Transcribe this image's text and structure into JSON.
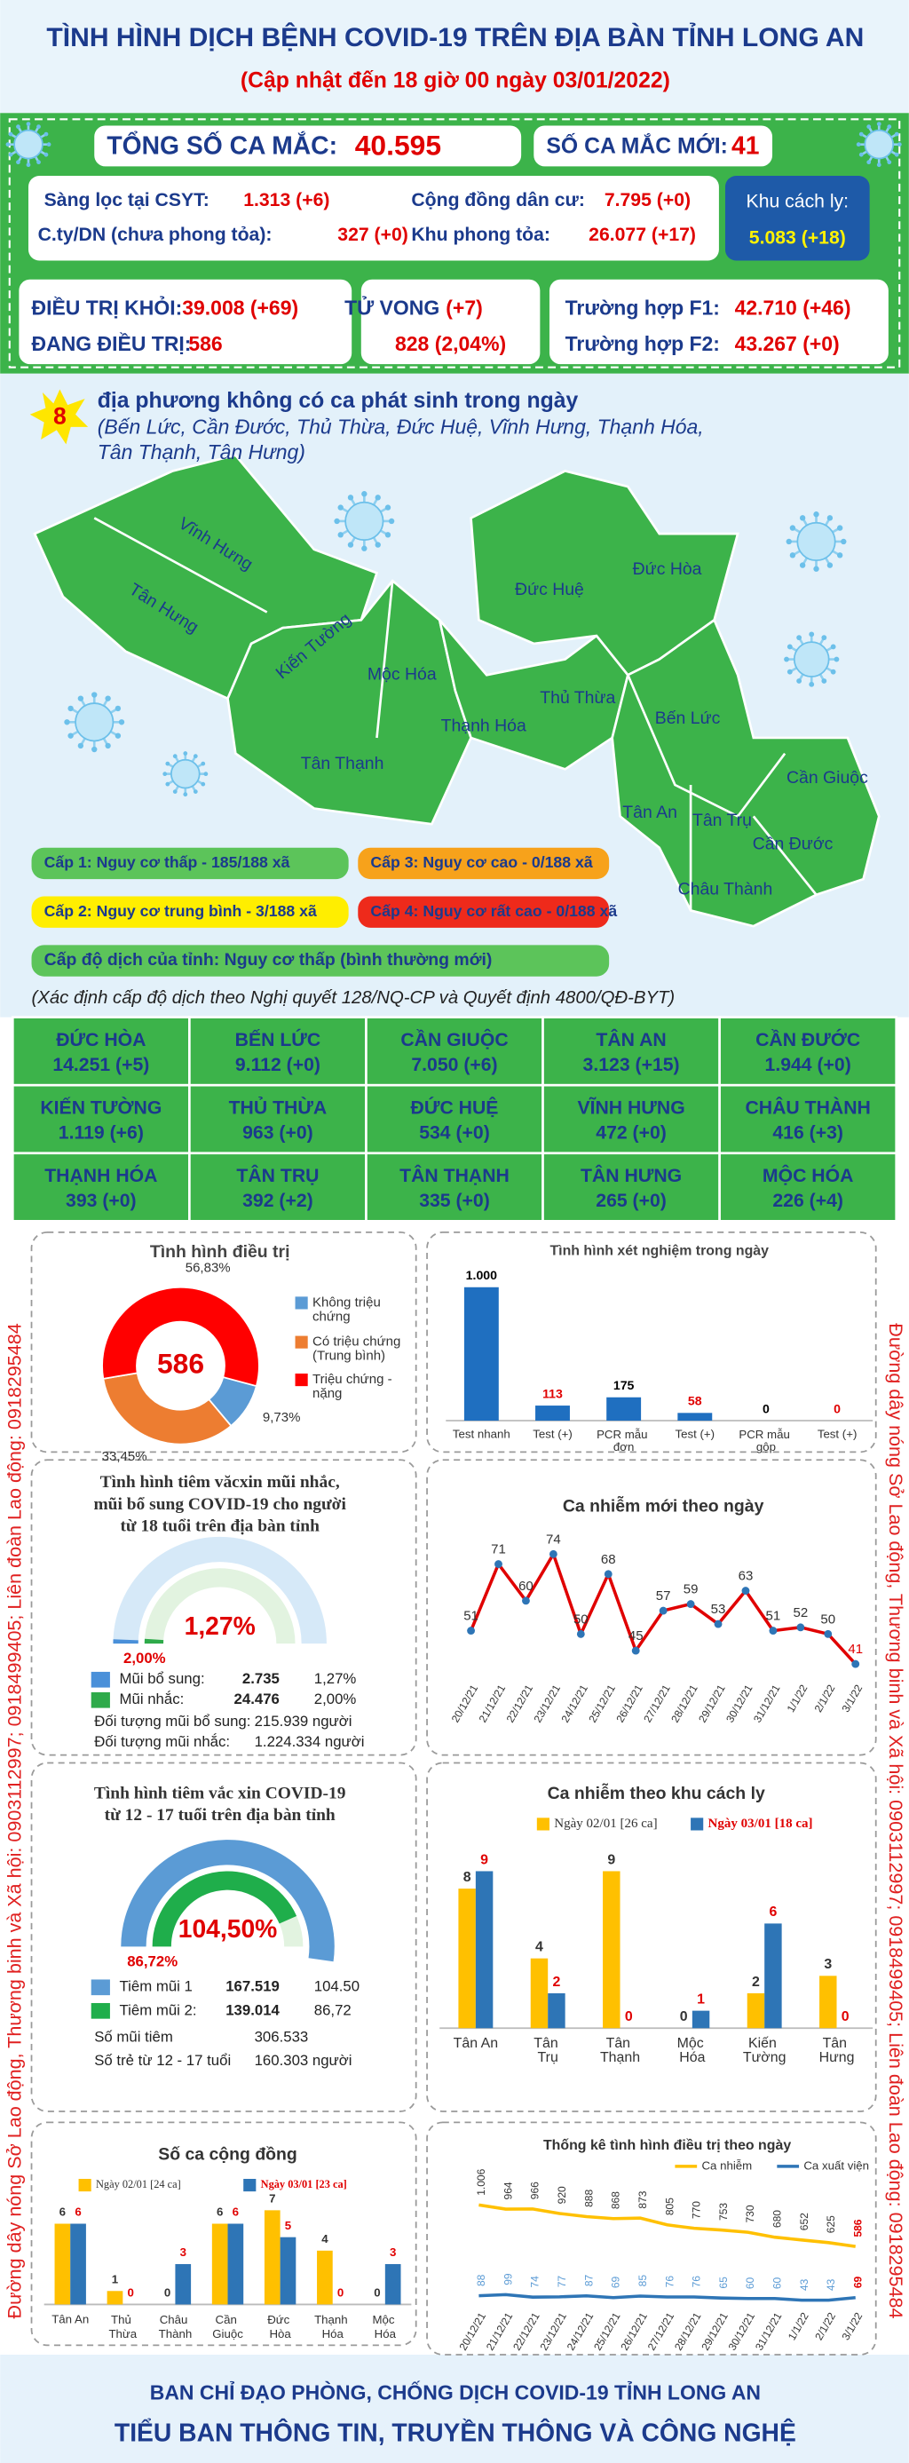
{
  "header": {
    "title": "TÌNH HÌNH DỊCH BỆNH COVID-19 TRÊN ĐỊA BÀN TỈNH LONG AN",
    "subtitle": "(Cập nhật đến 18 giờ 00 ngày 03/01/2022)"
  },
  "summary": {
    "total_label": "TỔNG SỐ CA MẮC:",
    "total": "40.595",
    "new_label": "SỐ CA MẮC MỚI:",
    "new": "41",
    "sources": [
      {
        "label": "Sàng lọc tại CSYT:",
        "value": "1.313 (+6)"
      },
      {
        "label": "C.ty/DN (chưa phong tỏa):",
        "value": "327 (+0)"
      },
      {
        "label": "Cộng đồng dân cư:",
        "value": "7.795 (+0)"
      },
      {
        "label": "Khu phong tỏa:",
        "value": "26.077 (+17)"
      },
      {
        "label": "Khu cách ly:",
        "value": "5.083 (+18)"
      }
    ],
    "recovered_label": "ĐIỀU TRỊ KHỎI:",
    "recovered": "39.008 (+69)",
    "treating_label": "ĐANG ĐIỀU TRỊ:",
    "treating": "586",
    "deaths_label": "TỬ VONG",
    "deaths_new": "(+7)",
    "deaths": "828 (2,04%)",
    "f1_label": "Trường hợp F1:",
    "f1": "42.710 (+46)",
    "f2_label": "Trường hợp F2:",
    "f2": "43.267 (+0)"
  },
  "map": {
    "count": "8",
    "headline": "địa phương không có ca phát sinh trong ngày",
    "list": [
      "(Bến Lức, Cần Đước, Thủ Thừa, Đức Huệ, Vĩnh Hưng, Thạnh Hóa,",
      "Tân Thạnh, Tân Hưng)"
    ],
    "districts": [
      "Vĩnh Hưng",
      "Tân Hưng",
      "Kiến Tường",
      "Mộc Hóa",
      "Tân Thạnh",
      "Thạnh Hóa",
      "Đức Huệ",
      "Đức Hòa",
      "Thủ Thừa",
      "Bến Lức",
      "Tân An",
      "Tân Trụ",
      "Châu Thành",
      "Cần Giuộc",
      "Cần Đước"
    ],
    "levels": [
      "Cấp 1: Nguy cơ thấp - 185/188 xã",
      "Cấp 2: Nguy cơ trung bình - 3/188 xã",
      "Cấp 3: Nguy cơ cao - 0/188 xã",
      "Cấp 4: Nguy cơ rất cao - 0/188 xã"
    ],
    "level_colors": [
      "#5cc45a",
      "#ffee00",
      "#f7a21b",
      "#ee2a1b"
    ],
    "province_level": "Cấp độ dịch của tỉnh: Nguy cơ thấp (bình thường mới)",
    "note": "(Xác định cấp độ dịch theo Nghị quyết 128/NQ-CP và Quyết định 4800/QĐ-BYT)"
  },
  "districts_table": [
    [
      {
        "name": "ĐỨC HÒA",
        "value": "14.251 (+5)"
      },
      {
        "name": "BẾN LỨC",
        "value": "9.112 (+0)"
      },
      {
        "name": "CẦN GIUỘC",
        "value": "7.050 (+6)"
      },
      {
        "name": "TÂN AN",
        "value": "3.123 (+15)"
      },
      {
        "name": "CẦN ĐƯỚC",
        "value": "1.944 (+0)"
      }
    ],
    [
      {
        "name": "KIẾN TƯỜNG",
        "value": "1.119 (+6)"
      },
      {
        "name": "THỦ THỪA",
        "value": "963 (+0)"
      },
      {
        "name": "ĐỨC HUỆ",
        "value": "534 (+0)"
      },
      {
        "name": "VĨNH HƯNG",
        "value": "472 (+0)"
      },
      {
        "name": "CHÂU THÀNH",
        "value": "416 (+3)"
      }
    ],
    [
      {
        "name": "THẠNH HÓA",
        "value": "393 (+0)"
      },
      {
        "name": "TÂN TRỤ",
        "value": "392 (+2)"
      },
      {
        "name": "TÂN THẠNH",
        "value": "335 (+0)"
      },
      {
        "name": "TÂN HƯNG",
        "value": "265 (+0)"
      },
      {
        "name": "MỘC HÓA",
        "value": "226 (+4)"
      }
    ]
  ],
  "hotline": "Đường dây nóng Sở Lao động, Thương binh và Xã hội: 0903112997; 0918499405; Liên đoàn Lao động: 0918295484",
  "chart_data": [
    {
      "type": "pie",
      "title": "Tình hình điều trị",
      "center_label": "586",
      "categories": [
        "Không triệu chứng",
        "Có triệu chứng (Trung bình)",
        "Triệu chứng - nặng"
      ],
      "values": [
        9.73,
        33.45,
        56.83
      ],
      "value_labels": [
        "9,73%",
        "33,45%",
        "56,83%"
      ],
      "colors": [
        "#5b9bd5",
        "#ed7d31",
        "#ff0000"
      ]
    },
    {
      "type": "bar",
      "title": "Tình hình xét nghiệm trong ngày",
      "categories": [
        "Test nhanh",
        "Test (+)",
        "PCR mẫu đơn",
        "Test (+)",
        "PCR mẫu gộp",
        "Test (+)"
      ],
      "values": [
        1000,
        113,
        175,
        58,
        0,
        0
      ],
      "value_labels": [
        "1.000",
        "113",
        "175",
        "58",
        "0",
        "0"
      ],
      "color": "#1f6fc0",
      "value_label_colors": [
        "#000000",
        "#e00000",
        "#000000",
        "#e00000",
        "#000000",
        "#e00000"
      ]
    },
    {
      "type": "gauge",
      "title": [
        "Tình hình tiêm văcxin mũi nhắc,",
        "mũi bổ sung COVID-19 cho người",
        "từ 18 tuổi trên địa bàn tỉnh"
      ],
      "values": [
        1.27,
        2.0
      ],
      "value_labels": [
        "1,27%",
        "2,00%"
      ],
      "colors": [
        "#4a90d9",
        "#2eaa4a"
      ],
      "rows": [
        [
          "Mũi bổ sung:",
          "2.735",
          "1,27%"
        ],
        [
          "Mũi nhắc:",
          "24.476",
          "2,00%"
        ],
        [
          "Đối tượng mũi bổ sung:",
          "215.939 người"
        ],
        [
          "Đối tượng mũi nhắc:",
          "1.224.334 người"
        ]
      ]
    },
    {
      "type": "line",
      "title": "Ca nhiễm mới theo ngày",
      "categories": [
        "20/12/21",
        "21/12/21",
        "22/12/21",
        "23/12/21",
        "24/12/21",
        "25/12/21",
        "26/12/21",
        "27/12/21",
        "28/12/21",
        "29/12/21",
        "30/12/21",
        "31/12/21",
        "1/1/22",
        "2/1/22",
        "3/1/22"
      ],
      "series": [
        {
          "color": "#e00000",
          "marker_color": "#2e75b6",
          "values": [
            51,
            71,
            60,
            74,
            50,
            68,
            45,
            57,
            59,
            53,
            63,
            51,
            52,
            50,
            41
          ]
        }
      ],
      "last_label_color": "#e00000"
    },
    {
      "type": "gauge",
      "title": [
        "Tình hình tiêm vắc xin COVID-19",
        "từ 12 - 17 tuổi trên địa bàn tỉnh"
      ],
      "values": [
        104.5,
        86.72
      ],
      "value_labels": [
        "104,50%",
        "86,72%"
      ],
      "colors": [
        "#5b9bd5",
        "#1fae4b"
      ],
      "rows": [
        [
          "Tiêm mũi 1",
          "167.519",
          "104.50"
        ],
        [
          "Tiêm mũi 2:",
          "139.014",
          "86,72"
        ],
        [
          "Số mũi tiêm",
          "306.533"
        ],
        [
          "Số trẻ từ 12 - 17 tuổi",
          "160.303 người"
        ]
      ]
    },
    {
      "type": "grouped_bar",
      "title": "Ca nhiễm theo khu cách ly",
      "categories": [
        "Tân An",
        "Tân Trụ",
        "Tân Thạnh",
        "Mộc Hóa",
        "Kiến Tường",
        "Tân Hưng"
      ],
      "series": [
        {
          "name": "Ngày 02/01 [26 ca]",
          "color": "#ffc000",
          "label_color": "#333333",
          "values": [
            8,
            4,
            9,
            0,
            2,
            3
          ]
        },
        {
          "name": "Ngày 03/01 [18 ca]",
          "color": "#2e75b6",
          "label_color": "#e00000",
          "values": [
            9,
            2,
            0,
            1,
            6,
            0
          ]
        }
      ]
    },
    {
      "type": "grouped_bar",
      "title": "Số ca cộng đồng",
      "categories": [
        "Tân An",
        "Thủ Thừa",
        "Châu Thành",
        "Cần Giuộc",
        "Đức Hòa",
        "Thạnh Hóa",
        "Mộc Hóa"
      ],
      "series": [
        {
          "name": "Ngày 02/01 [24 ca]",
          "color": "#ffc000",
          "label_color": "#333333",
          "values": [
            6,
            1,
            0,
            6,
            7,
            4,
            0
          ]
        },
        {
          "name": "Ngày 03/01 [23 ca]",
          "color": "#2e75b6",
          "label_color": "#e00000",
          "values": [
            6,
            0,
            3,
            6,
            5,
            0,
            3
          ]
        }
      ]
    },
    {
      "type": "line",
      "title": "Thống kê tình hình điều trị theo ngày",
      "categories": [
        "20/12/21",
        "21/12/21",
        "22/12/21",
        "23/12/21",
        "24/12/21",
        "25/12/21",
        "26/12/21",
        "27/12/21",
        "28/12/21",
        "29/12/21",
        "30/12/21",
        "31/12/21",
        "1/1/22",
        "2/1/22",
        "3/1/22"
      ],
      "series": [
        {
          "name": "Ca nhiễm",
          "color": "#ffc000",
          "values": [
            1006,
            964,
            966,
            920,
            888,
            868,
            873,
            805,
            770,
            753,
            730,
            680,
            652,
            625,
            586
          ],
          "value_labels": [
            "1.006",
            "964",
            "966",
            "920",
            "888",
            "868",
            "873",
            "805",
            "770",
            "753",
            "730",
            "680",
            "652",
            "625",
            "586"
          ]
        },
        {
          "name": "Ca xuất viện",
          "color": "#2e75b6",
          "values": [
            88,
            99,
            74,
            77,
            87,
            69,
            85,
            76,
            76,
            65,
            60,
            60,
            43,
            43,
            69
          ]
        }
      ],
      "last_label_color": "#e00000"
    }
  ],
  "footer": {
    "line1": "BAN CHỈ ĐẠO PHÒNG, CHỐNG DỊCH COVID-19 TỈNH LONG AN",
    "line2": "TIỂU BAN THÔNG TIN, TRUYỀN THÔNG VÀ CÔNG NGHỆ"
  }
}
